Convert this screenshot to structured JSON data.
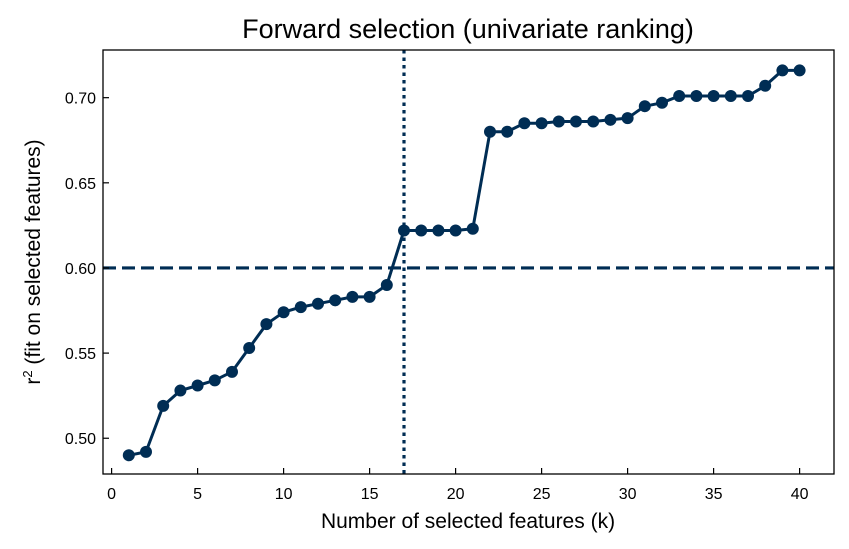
{
  "chart_data": {
    "type": "line",
    "title": "Forward selection (univariate ranking)",
    "xlabel": "Number of selected features (k)",
    "ylabel_base": "r",
    "ylabel_sup": "2",
    "ylabel_rest": " (fit on selected features)",
    "xlim": [
      -0.5,
      42
    ],
    "ylim": [
      0.479,
      0.728
    ],
    "x_ticks": [
      0,
      5,
      10,
      15,
      20,
      25,
      30,
      35,
      40
    ],
    "x_tick_labels": [
      "0",
      "5",
      "10",
      "15",
      "20",
      "25",
      "30",
      "35",
      "40"
    ],
    "y_ticks": [
      0.5,
      0.55,
      0.6,
      0.65,
      0.7
    ],
    "y_tick_labels": [
      "0.50",
      "0.55",
      "0.60",
      "0.65",
      "0.70"
    ],
    "grid": false,
    "series": [
      {
        "color": "#002d54",
        "marker": "circle",
        "x": [
          1,
          2,
          3,
          4,
          5,
          6,
          7,
          8,
          9,
          10,
          11,
          12,
          13,
          14,
          15,
          16,
          17,
          18,
          19,
          20,
          21,
          22,
          23,
          24,
          25,
          26,
          27,
          28,
          29,
          30,
          31,
          32,
          33,
          34,
          35,
          36,
          37,
          38,
          39,
          40
        ],
        "y": [
          0.49,
          0.492,
          0.519,
          0.528,
          0.531,
          0.534,
          0.539,
          0.553,
          0.567,
          0.574,
          0.577,
          0.579,
          0.581,
          0.583,
          0.583,
          0.59,
          0.622,
          0.622,
          0.622,
          0.622,
          0.623,
          0.68,
          0.68,
          0.685,
          0.685,
          0.686,
          0.686,
          0.686,
          0.687,
          0.688,
          0.695,
          0.697,
          0.701,
          0.701,
          0.701,
          0.701,
          0.701,
          0.707,
          0.716,
          0.716
        ]
      }
    ],
    "reference_lines": [
      {
        "orientation": "horizontal",
        "value": 0.6,
        "style": "dashed",
        "color": "#002d54"
      },
      {
        "orientation": "vertical",
        "value": 17,
        "style": "dotted",
        "color": "#002d54"
      }
    ]
  }
}
